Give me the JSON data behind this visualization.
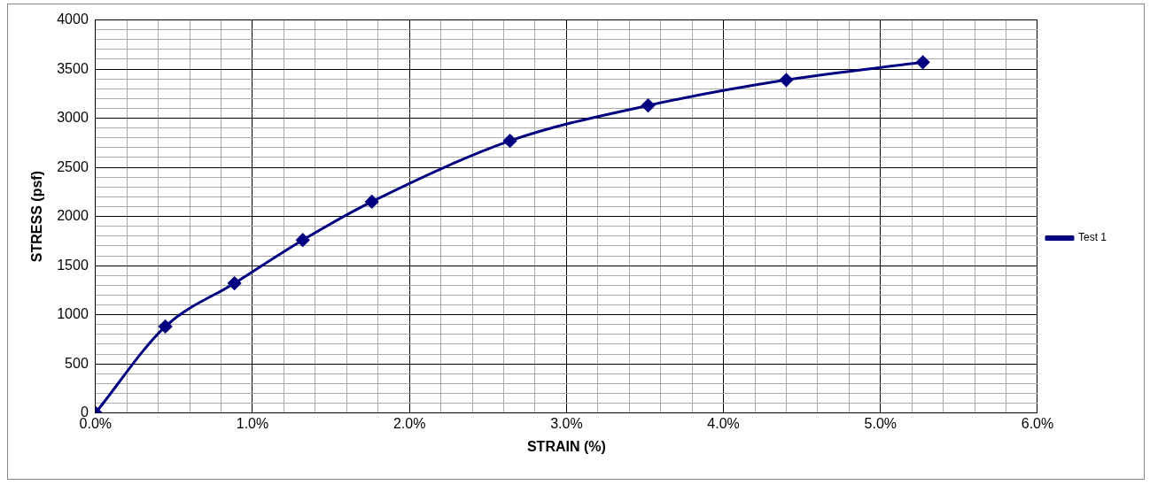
{
  "chart_data": {
    "type": "line",
    "xlabel": "STRAIN (%)",
    "ylabel": "STRESS (psf)",
    "x": [
      0,
      0.445,
      0.885,
      1.32,
      1.76,
      2.64,
      3.52,
      4.4,
      5.27
    ],
    "series": [
      {
        "name": "Test 1",
        "color": "#000080",
        "values": [
          0,
          880,
          1320,
          1760,
          2150,
          2770,
          3130,
          3390,
          3570
        ]
      }
    ],
    "xlim": [
      0,
      6
    ],
    "xticks": [
      {
        "value": 0,
        "label": "0.0%"
      },
      {
        "value": 0.2,
        "label": null
      },
      {
        "value": 0.4,
        "label": null
      },
      {
        "value": 0.6,
        "label": null
      },
      {
        "value": 0.8,
        "label": null
      },
      {
        "value": 1,
        "label": "1.0%"
      },
      {
        "value": 1.2,
        "label": null
      },
      {
        "value": 1.4,
        "label": null
      },
      {
        "value": 1.6,
        "label": null
      },
      {
        "value": 1.8,
        "label": null
      },
      {
        "value": 2,
        "label": "2.0%"
      },
      {
        "value": 2.2,
        "label": null
      },
      {
        "value": 2.4,
        "label": null
      },
      {
        "value": 2.6,
        "label": null
      },
      {
        "value": 2.8,
        "label": null
      },
      {
        "value": 3,
        "label": "3.0%"
      },
      {
        "value": 3.2,
        "label": null
      },
      {
        "value": 3.4,
        "label": null
      },
      {
        "value": 3.6,
        "label": null
      },
      {
        "value": 3.8,
        "label": null
      },
      {
        "value": 4,
        "label": "4.0%"
      },
      {
        "value": 4.2,
        "label": null
      },
      {
        "value": 4.4,
        "label": null
      },
      {
        "value": 4.6,
        "label": null
      },
      {
        "value": 4.8,
        "label": null
      },
      {
        "value": 5,
        "label": "5.0%"
      },
      {
        "value": 5.2,
        "label": null
      },
      {
        "value": 5.4,
        "label": null
      },
      {
        "value": 5.6,
        "label": null
      },
      {
        "value": 5.8,
        "label": null
      },
      {
        "value": 6,
        "label": "6.0%"
      }
    ],
    "ylim": [
      0,
      4000
    ],
    "yticks": [
      0,
      {
        "value": 100,
        "label": null
      },
      {
        "value": 200,
        "label": null
      },
      {
        "value": 300,
        "label": null
      },
      {
        "value": 400,
        "label": null
      },
      500,
      {
        "value": 600,
        "label": null
      },
      {
        "value": 700,
        "label": null
      },
      {
        "value": 800,
        "label": null
      },
      {
        "value": 900,
        "label": null
      },
      1000,
      {
        "value": 1100,
        "label": null
      },
      {
        "value": 1200,
        "label": null
      },
      {
        "value": 1300,
        "label": null
      },
      {
        "value": 1400,
        "label": null
      },
      1500,
      {
        "value": 1600,
        "label": null
      },
      {
        "value": 1700,
        "label": null
      },
      {
        "value": 1800,
        "label": null
      },
      {
        "value": 1900,
        "label": null
      },
      2000,
      {
        "value": 2100,
        "label": null
      },
      {
        "value": 2200,
        "label": null
      },
      {
        "value": 2300,
        "label": null
      },
      {
        "value": 2400,
        "label": null
      },
      2500,
      {
        "value": 2600,
        "label": null
      },
      {
        "value": 2700,
        "label": null
      },
      {
        "value": 2800,
        "label": null
      },
      {
        "value": 2900,
        "label": null
      },
      3000,
      {
        "value": 3100,
        "label": null
      },
      {
        "value": 3200,
        "label": null
      },
      {
        "value": 3300,
        "label": null
      },
      {
        "value": 3400,
        "label": null
      },
      3500,
      {
        "value": 3600,
        "label": null
      },
      {
        "value": 3700,
        "label": null
      },
      {
        "value": 3800,
        "label": null
      },
      {
        "value": 3900,
        "label": null
      },
      4000
    ],
    "grid": true,
    "legend": "right",
    "marker": "diamond",
    "line_style": "solid"
  }
}
